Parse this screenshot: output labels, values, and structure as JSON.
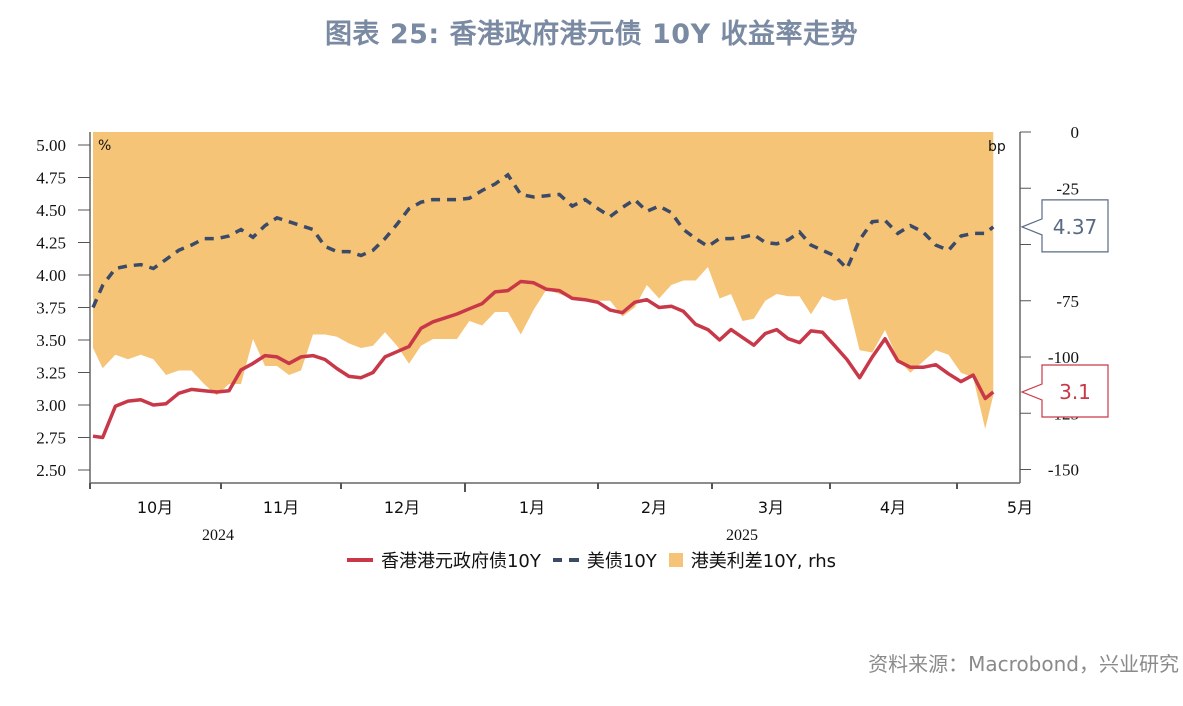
{
  "title": "图表 25: 香港政府港元债 10Y 收益率走势",
  "source": "资料来源：Macrobond，兴业研究",
  "colors": {
    "hk": "#C93848",
    "us": "#3B4A66",
    "spread": "#F6C477",
    "title": "#7A8AA2"
  },
  "chart_data": {
    "type": "line",
    "left_unit": "%",
    "right_unit": "bp",
    "left_ylim": [
      2.4,
      5.1
    ],
    "right_ylim": [
      -156,
      0
    ],
    "left_ticks": [
      "2.50",
      "2.75",
      "3.00",
      "3.25",
      "3.50",
      "3.75",
      "4.00",
      "4.25",
      "4.50",
      "4.75",
      "5.00"
    ],
    "right_ticks": [
      "0",
      "-25",
      "-50",
      "-75",
      "-100",
      "-125",
      "-150"
    ],
    "month_labels": [
      "10月",
      "11月",
      "12月",
      "1月",
      "2月",
      "3月",
      "4月",
      "5月"
    ],
    "year_labels": [
      "2024",
      "2025"
    ],
    "legend_position": "bottom",
    "grid": false,
    "dates": [
      "2024-10-01",
      "2024-10-04",
      "2024-10-07",
      "2024-10-10",
      "2024-10-13",
      "2024-10-16",
      "2024-10-19",
      "2024-10-22",
      "2024-10-25",
      "2024-10-28",
      "2024-10-31",
      "2024-11-03",
      "2024-11-06",
      "2024-11-09",
      "2024-11-12",
      "2024-11-15",
      "2024-11-18",
      "2024-11-21",
      "2024-11-24",
      "2024-11-27",
      "2024-11-30",
      "2024-12-03",
      "2024-12-06",
      "2024-12-09",
      "2024-12-12",
      "2024-12-15",
      "2024-12-18",
      "2024-12-21",
      "2024-12-24",
      "2024-12-27",
      "2024-12-30",
      "2025-01-02",
      "2025-01-05",
      "2025-01-08",
      "2025-01-11",
      "2025-01-14",
      "2025-01-17",
      "2025-01-20",
      "2025-01-23",
      "2025-01-26",
      "2025-01-29",
      "2025-02-01",
      "2025-02-04",
      "2025-02-07",
      "2025-02-10",
      "2025-02-13",
      "2025-02-16",
      "2025-02-19",
      "2025-02-22",
      "2025-02-25",
      "2025-02-28",
      "2025-03-03",
      "2025-03-06",
      "2025-03-09",
      "2025-03-12",
      "2025-03-15",
      "2025-03-18",
      "2025-03-21",
      "2025-03-24",
      "2025-03-27",
      "2025-03-30",
      "2025-04-02",
      "2025-04-05",
      "2025-04-08",
      "2025-04-11",
      "2025-04-14",
      "2025-04-17",
      "2025-04-20",
      "2025-04-23",
      "2025-04-26",
      "2025-04-29",
      "2025-05-02",
      "2025-05-05",
      "2025-05-08",
      "2025-05-10"
    ],
    "series": [
      {
        "name": "香港港元政府债10Y",
        "axis": "left",
        "style": "solid",
        "values": [
          2.76,
          2.75,
          2.99,
          3.03,
          3.04,
          3.0,
          3.01,
          3.09,
          3.12,
          3.11,
          3.1,
          3.11,
          3.27,
          3.32,
          3.38,
          3.37,
          3.32,
          3.37,
          3.38,
          3.35,
          3.28,
          3.22,
          3.21,
          3.25,
          3.37,
          3.41,
          3.45,
          3.59,
          3.64,
          3.67,
          3.7,
          3.74,
          3.78,
          3.87,
          3.88,
          3.95,
          3.94,
          3.89,
          3.88,
          3.82,
          3.81,
          3.79,
          3.73,
          3.71,
          3.79,
          3.81,
          3.75,
          3.76,
          3.72,
          3.62,
          3.58,
          3.5,
          3.58,
          3.52,
          3.46,
          3.55,
          3.58,
          3.51,
          3.48,
          3.57,
          3.56,
          3.46,
          3.35,
          3.21,
          3.37,
          3.51,
          3.34,
          3.29,
          3.29,
          3.31,
          3.24,
          3.18,
          3.23,
          3.05,
          3.1
        ]
      },
      {
        "name": "美债10Y",
        "axis": "left",
        "style": "dashed",
        "values": [
          3.75,
          3.92,
          4.05,
          4.07,
          4.08,
          4.05,
          4.12,
          4.19,
          4.23,
          4.28,
          4.28,
          4.3,
          4.35,
          4.29,
          4.38,
          4.44,
          4.41,
          4.38,
          4.35,
          4.22,
          4.18,
          4.18,
          4.15,
          4.19,
          4.28,
          4.39,
          4.51,
          4.56,
          4.58,
          4.58,
          4.58,
          4.59,
          4.65,
          4.7,
          4.77,
          4.62,
          4.6,
          4.61,
          4.62,
          4.53,
          4.58,
          4.51,
          4.45,
          4.52,
          4.58,
          4.49,
          4.53,
          4.48,
          4.35,
          4.28,
          4.22,
          4.28,
          4.28,
          4.29,
          4.31,
          4.25,
          4.24,
          4.27,
          4.33,
          4.23,
          4.19,
          4.15,
          4.05,
          4.27,
          4.41,
          4.42,
          4.32,
          4.38,
          4.33,
          4.23,
          4.19,
          4.3,
          4.32,
          4.32,
          4.37
        ]
      },
      {
        "name": "港美利差10Y, rhs",
        "axis": "right",
        "style": "area",
        "values": [
          -96,
          -105,
          -99,
          -101,
          -99,
          -101,
          -108,
          -106,
          -106,
          -112,
          -117,
          -112,
          -112,
          -92,
          -104,
          -104,
          -108,
          -106,
          -90,
          -90,
          -91,
          -94,
          -96,
          -95,
          -89,
          -95,
          -103,
          -95,
          -92,
          -92,
          -92,
          -84,
          -86,
          -80,
          -80,
          -90,
          -79,
          -70,
          -72,
          -74,
          -75,
          -75,
          -75,
          -82,
          -78,
          -68,
          -74,
          -68,
          -66,
          -66,
          -60,
          -74,
          -72,
          -84,
          -83,
          -75,
          -72,
          -73,
          -73,
          -81,
          -73,
          -75,
          -74,
          -97,
          -98,
          -88,
          -101,
          -107,
          -102,
          -97,
          -99,
          -107,
          -109,
          -132,
          -117
        ]
      }
    ],
    "annotations": [
      {
        "series": "美债10Y",
        "text": "4.37"
      },
      {
        "series": "香港港元政府债10Y",
        "text": "3.1"
      }
    ]
  },
  "legend": {
    "hk": "香港港元政府债10Y",
    "us": "美债10Y",
    "spread": "港美利差10Y, rhs"
  }
}
